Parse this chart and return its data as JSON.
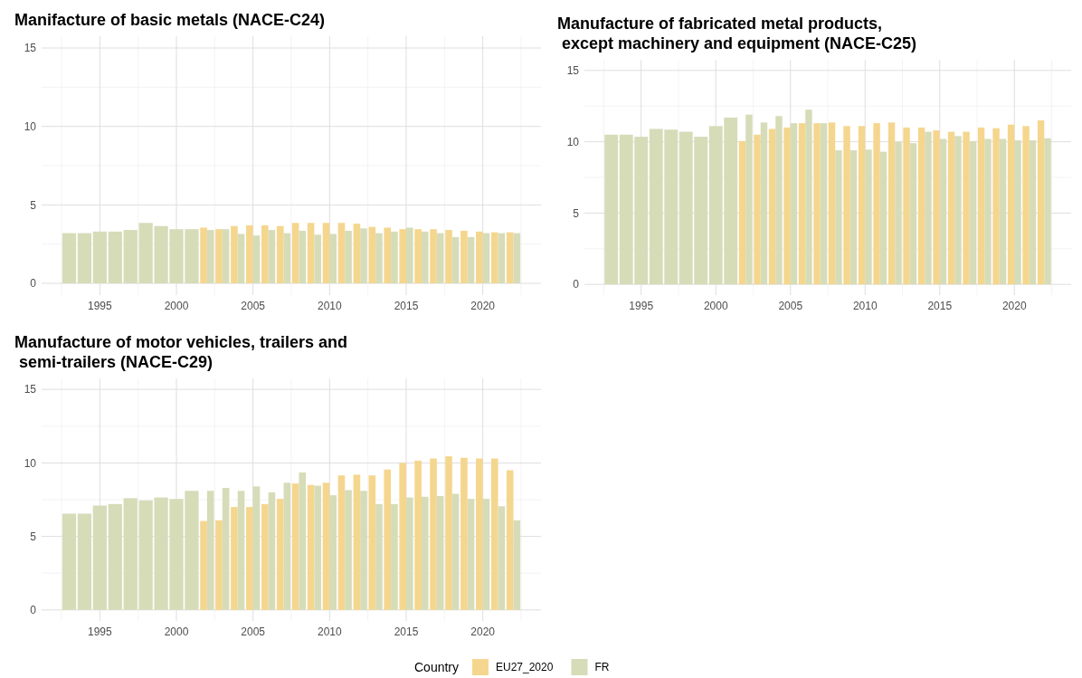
{
  "chart_data": [
    {
      "type": "bar",
      "title": "Manifacture of basic metals (NACE-C24)",
      "x": [
        1993,
        1994,
        1995,
        1996,
        1997,
        1998,
        1999,
        2000,
        2001,
        2002,
        2003,
        2004,
        2005,
        2006,
        2007,
        2008,
        2009,
        2010,
        2011,
        2012,
        2013,
        2014,
        2015,
        2016,
        2017,
        2018,
        2019,
        2020,
        2021,
        2022
      ],
      "xlim": [
        1991.2,
        2023.8
      ],
      "xticks": [
        1995,
        2000,
        2005,
        2010,
        2015,
        2020
      ],
      "ylim": [
        -0.75,
        15.75
      ],
      "yticks": [
        0,
        5,
        10,
        15
      ],
      "grid": true,
      "legend": "bottom",
      "legend_title": "Country",
      "series": [
        {
          "name": "EU27_2020",
          "color": "#f5d68e",
          "values": [
            null,
            null,
            null,
            null,
            null,
            null,
            null,
            null,
            null,
            3.55,
            3.45,
            3.65,
            3.7,
            3.7,
            3.65,
            3.85,
            3.85,
            3.85,
            3.85,
            3.8,
            3.6,
            3.55,
            3.45,
            3.45,
            3.45,
            3.4,
            3.35,
            3.3,
            3.25,
            3.25
          ]
        },
        {
          "name": "FR",
          "color": "#d6dcb8",
          "values": [
            3.2,
            3.2,
            3.3,
            3.3,
            3.4,
            3.85,
            3.65,
            3.45,
            3.45,
            3.4,
            3.45,
            3.15,
            3.05,
            3.4,
            3.2,
            3.35,
            3.1,
            3.15,
            3.35,
            3.5,
            3.2,
            3.3,
            3.55,
            3.3,
            3.2,
            2.95,
            2.95,
            3.2,
            3.2,
            3.2
          ]
        }
      ]
    },
    {
      "type": "bar",
      "title": "Manufacture of fabricated metal products,\n except machinery and equipment (NACE-C25)",
      "x": [
        1993,
        1994,
        1995,
        1996,
        1997,
        1998,
        1999,
        2000,
        2001,
        2002,
        2003,
        2004,
        2005,
        2006,
        2007,
        2008,
        2009,
        2010,
        2011,
        2012,
        2013,
        2014,
        2015,
        2016,
        2017,
        2018,
        2019,
        2020,
        2021,
        2022
      ],
      "xlim": [
        1991.2,
        2023.8
      ],
      "xticks": [
        1995,
        2000,
        2005,
        2010,
        2015,
        2020
      ],
      "ylim": [
        -0.75,
        15.75
      ],
      "yticks": [
        0,
        5,
        10,
        15
      ],
      "grid": true,
      "series": [
        {
          "name": "EU27_2020",
          "color": "#f5d68e",
          "values": [
            null,
            null,
            null,
            null,
            null,
            null,
            null,
            null,
            null,
            10.05,
            10.5,
            10.9,
            11.0,
            11.3,
            11.3,
            11.35,
            11.1,
            11.1,
            11.3,
            11.35,
            11.0,
            11.0,
            10.8,
            10.7,
            10.7,
            11.0,
            10.95,
            11.2,
            11.1,
            11.5
          ]
        },
        {
          "name": "FR",
          "color": "#d6dcb8",
          "values": [
            10.5,
            10.5,
            10.35,
            10.9,
            10.85,
            10.7,
            10.35,
            11.1,
            11.7,
            11.9,
            11.35,
            11.8,
            11.3,
            12.25,
            11.3,
            9.4,
            9.4,
            9.45,
            9.3,
            10.0,
            9.9,
            10.7,
            10.2,
            10.4,
            10.05,
            10.2,
            10.2,
            10.1,
            10.1,
            10.25
          ]
        }
      ]
    },
    {
      "type": "bar",
      "title": "Manufacture of motor vehicles, trailers and\n semi-trailers (NACE-C29)",
      "x": [
        1993,
        1994,
        1995,
        1996,
        1997,
        1998,
        1999,
        2000,
        2001,
        2002,
        2003,
        2004,
        2005,
        2006,
        2007,
        2008,
        2009,
        2010,
        2011,
        2012,
        2013,
        2014,
        2015,
        2016,
        2017,
        2018,
        2019,
        2020,
        2021,
        2022
      ],
      "xlim": [
        1991.2,
        2023.8
      ],
      "xticks": [
        1995,
        2000,
        2005,
        2010,
        2015,
        2020
      ],
      "ylim": [
        -0.75,
        15.75
      ],
      "yticks": [
        0,
        5,
        10,
        15
      ],
      "grid": true,
      "series": [
        {
          "name": "EU27_2020",
          "color": "#f5d68e",
          "values": [
            null,
            null,
            null,
            null,
            null,
            null,
            null,
            null,
            null,
            6.05,
            6.1,
            7.0,
            7.0,
            7.2,
            7.55,
            8.6,
            8.5,
            8.65,
            9.15,
            9.2,
            9.15,
            9.55,
            10.0,
            10.15,
            10.3,
            10.45,
            10.35,
            10.3,
            10.3,
            9.5
          ]
        },
        {
          "name": "FR",
          "color": "#d6dcb8",
          "values": [
            6.55,
            6.55,
            7.1,
            7.2,
            7.6,
            7.45,
            7.65,
            7.55,
            8.1,
            8.1,
            8.3,
            8.1,
            8.4,
            8.0,
            8.65,
            9.35,
            8.45,
            7.8,
            8.15,
            8.1,
            7.2,
            7.2,
            7.65,
            7.7,
            7.75,
            7.9,
            7.55,
            7.55,
            7.05,
            6.1
          ]
        }
      ]
    }
  ]
}
